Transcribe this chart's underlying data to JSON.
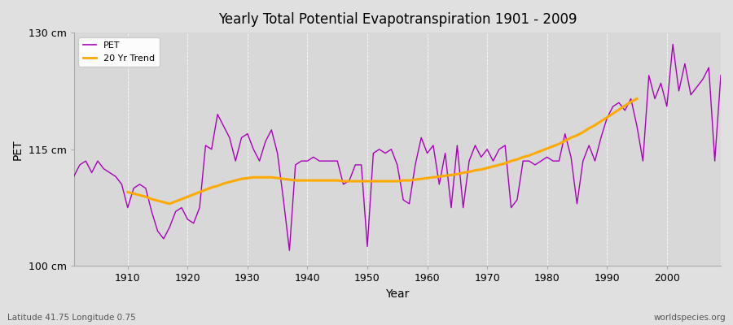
{
  "title": "Yearly Total Potential Evapotranspiration 1901 - 2009",
  "xlabel": "Year",
  "ylabel": "PET",
  "subtitle_lat_lon": "Latitude 41.75 Longitude 0.75",
  "watermark": "worldspecies.org",
  "ylim": [
    100,
    130
  ],
  "xlim": [
    1901,
    2009
  ],
  "yticks": [
    100,
    115,
    130
  ],
  "ytick_labels": [
    "100 cm",
    "115 cm",
    "130 cm"
  ],
  "xticks": [
    1910,
    1920,
    1930,
    1940,
    1950,
    1960,
    1970,
    1980,
    1990,
    2000
  ],
  "pet_color": "#aa00bb",
  "trend_color": "#ffaa00",
  "fig_bg_color": "#e0e0e0",
  "plot_bg_color": "#d8d8d8",
  "legend_pet": "PET",
  "legend_trend": "20 Yr Trend",
  "years": [
    1901,
    1902,
    1903,
    1904,
    1905,
    1906,
    1907,
    1908,
    1909,
    1910,
    1911,
    1912,
    1913,
    1914,
    1915,
    1916,
    1917,
    1918,
    1919,
    1920,
    1921,
    1922,
    1923,
    1924,
    1925,
    1926,
    1927,
    1928,
    1929,
    1930,
    1931,
    1932,
    1933,
    1934,
    1935,
    1936,
    1937,
    1938,
    1939,
    1940,
    1941,
    1942,
    1943,
    1944,
    1945,
    1946,
    1947,
    1948,
    1949,
    1950,
    1951,
    1952,
    1953,
    1954,
    1955,
    1956,
    1957,
    1958,
    1959,
    1960,
    1961,
    1962,
    1963,
    1964,
    1965,
    1966,
    1967,
    1968,
    1969,
    1970,
    1971,
    1972,
    1973,
    1974,
    1975,
    1976,
    1977,
    1978,
    1979,
    1980,
    1981,
    1982,
    1983,
    1984,
    1985,
    1986,
    1987,
    1988,
    1989,
    1990,
    1991,
    1992,
    1993,
    1994,
    1995,
    1996,
    1997,
    1998,
    1999,
    2000,
    2001,
    2002,
    2003,
    2004,
    2005,
    2006,
    2007,
    2008,
    2009
  ],
  "pet_values": [
    111.5,
    113.0,
    113.5,
    112.0,
    113.5,
    112.5,
    112.0,
    111.5,
    110.5,
    107.5,
    110.0,
    110.5,
    110.0,
    107.0,
    104.5,
    103.5,
    105.0,
    107.0,
    107.5,
    106.0,
    105.5,
    107.5,
    115.5,
    115.0,
    119.5,
    118.0,
    116.5,
    113.5,
    116.5,
    117.0,
    115.0,
    113.5,
    116.0,
    117.5,
    114.5,
    108.5,
    102.0,
    113.0,
    113.5,
    113.5,
    114.0,
    113.5,
    113.5,
    113.5,
    113.5,
    110.5,
    111.0,
    113.0,
    113.0,
    102.5,
    114.5,
    115.0,
    114.5,
    115.0,
    113.0,
    108.5,
    108.0,
    113.0,
    116.5,
    114.5,
    115.5,
    110.5,
    114.5,
    107.5,
    115.5,
    107.5,
    113.5,
    115.5,
    114.0,
    115.0,
    113.5,
    115.0,
    115.5,
    107.5,
    108.5,
    113.5,
    113.5,
    113.0,
    113.5,
    114.0,
    113.5,
    113.5,
    117.0,
    114.0,
    108.0,
    113.5,
    115.5,
    113.5,
    116.5,
    119.0,
    120.5,
    121.0,
    120.0,
    121.5,
    118.0,
    113.5,
    124.5,
    121.5,
    123.5,
    120.5,
    128.5,
    122.5,
    126.0,
    122.0,
    123.0,
    124.0,
    125.5,
    113.5,
    124.5
  ],
  "trend_values": [
    null,
    null,
    null,
    null,
    null,
    null,
    null,
    null,
    null,
    109.5,
    109.3,
    109.1,
    108.9,
    108.6,
    108.4,
    108.2,
    108.0,
    108.3,
    108.6,
    108.9,
    109.2,
    109.5,
    109.8,
    110.1,
    110.3,
    110.6,
    110.8,
    111.0,
    111.2,
    111.3,
    111.4,
    111.4,
    111.4,
    111.4,
    111.3,
    111.2,
    111.1,
    111.0,
    111.0,
    111.0,
    111.0,
    111.0,
    111.0,
    111.0,
    111.0,
    110.9,
    110.9,
    110.9,
    110.9,
    110.9,
    110.9,
    110.9,
    110.9,
    110.9,
    110.9,
    111.0,
    111.0,
    111.1,
    111.2,
    111.3,
    111.4,
    111.5,
    111.6,
    111.7,
    111.8,
    112.0,
    112.1,
    112.3,
    112.4,
    112.6,
    112.8,
    113.0,
    113.2,
    113.5,
    113.7,
    114.0,
    114.2,
    114.5,
    114.8,
    115.1,
    115.4,
    115.7,
    116.1,
    116.5,
    116.8,
    117.2,
    117.7,
    118.1,
    118.6,
    119.1,
    119.6,
    120.1,
    120.6,
    121.1,
    121.5,
    null,
    null,
    null,
    null,
    null,
    null,
    null,
    null,
    null,
    null,
    null,
    null,
    null,
    null
  ]
}
